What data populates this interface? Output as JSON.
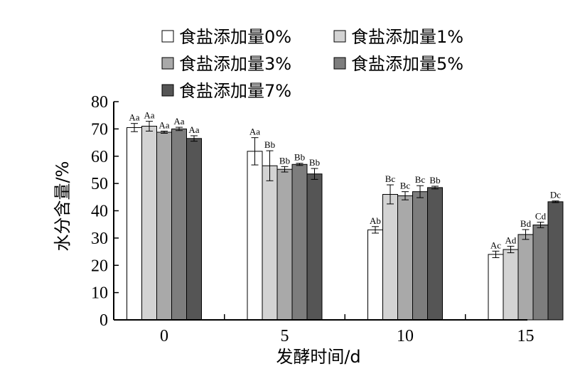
{
  "chart_data": {
    "type": "bar",
    "categories": [
      "0",
      "5",
      "10",
      "15"
    ],
    "xlabel": "发酵时间/d",
    "ylabel": "水分含量/%",
    "ylim": [
      0,
      80
    ],
    "yticks": [
      "0",
      "10",
      "20",
      "30",
      "40",
      "50",
      "60",
      "70",
      "80"
    ],
    "grid": false,
    "legend_position": "top",
    "series": [
      {
        "name": "食盐添加量0%",
        "color": "#ffffff",
        "values": [
          70.5,
          61.8,
          33.0,
          24.0
        ],
        "errors": [
          1.5,
          5.0,
          1.2,
          1.2
        ],
        "labels": [
          "Aa",
          "Aa",
          "Ab",
          "Ac"
        ]
      },
      {
        "name": "食盐添加量1%",
        "color": "#d3d3d3",
        "values": [
          71.0,
          56.5,
          46.0,
          25.8
        ],
        "errors": [
          1.8,
          5.5,
          3.5,
          1.2
        ],
        "labels": [
          "Aa",
          "Bb",
          "Bc",
          "Ad"
        ]
      },
      {
        "name": "食盐添加量3%",
        "color": "#a9a9a9",
        "values": [
          68.8,
          55.2,
          45.5,
          31.3
        ],
        "errors": [
          0.4,
          1.0,
          1.5,
          1.8
        ],
        "labels": [
          "Aa",
          "Bb",
          "Bc",
          "Bd"
        ]
      },
      {
        "name": "食盐添加量5%",
        "color": "#7d7d7d",
        "values": [
          70.0,
          57.0,
          47.0,
          34.8
        ],
        "errors": [
          0.6,
          0.4,
          2.2,
          1.0
        ],
        "labels": [
          "Aa",
          "Bb",
          "Bc",
          "Cd"
        ]
      },
      {
        "name": "食盐添加量7%",
        "color": "#555555",
        "values": [
          66.5,
          53.5,
          48.5,
          43.3
        ],
        "errors": [
          1.0,
          2.0,
          0.5,
          0.3
        ],
        "labels": [
          "Aa",
          "Bb",
          "Bb",
          "Dc"
        ]
      }
    ]
  }
}
